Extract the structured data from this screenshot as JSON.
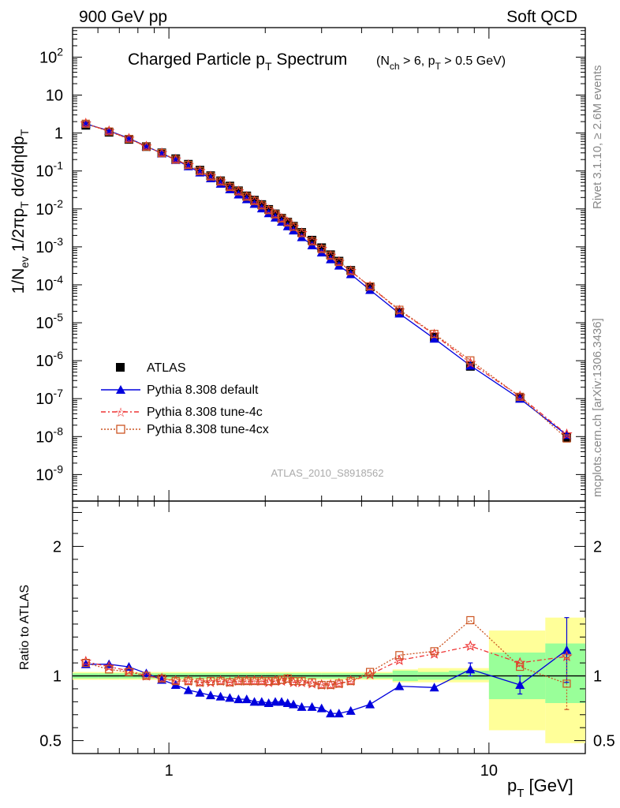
{
  "header": {
    "left": "900 GeV pp",
    "right": "Soft QCD"
  },
  "side": {
    "rivet": "Rivet 3.1.10, ≥ 2.6M events",
    "mcplots": "mcplots.cern.ch [arXiv:1306.3436]"
  },
  "plot_title": {
    "main_a": "Charged Particle p",
    "main_sub": "T",
    "main_b": " Spectrum",
    "cut_a": "(N",
    "cut_sub1": "ch",
    "cut_b": " > 6, p",
    "cut_sub2": "T",
    "cut_c": " > 0.5 GeV)"
  },
  "analysis_id": "ATLAS_2010_S8918562",
  "ylabel_top": "1/N_ev 1/2πp_T dσ/dηdp_T",
  "ylabel_ratio": "Ratio to ATLAS",
  "xlabel": "p_T  [GeV]",
  "legend": [
    {
      "label": "ATLAS",
      "color": "#000000",
      "marker": "square"
    },
    {
      "label": "Pythia 8.308 default",
      "color": "#0000dd",
      "marker": "triangle"
    },
    {
      "label": "Pythia 8.308 tune-4c",
      "color": "#ee3333",
      "marker": "star"
    },
    {
      "label": "Pythia 8.308 tune-4cx",
      "color": "#cc5522",
      "marker": "open-square"
    }
  ],
  "chart_data": {
    "type": "scatter",
    "x_scale": "log",
    "y_scale": "log",
    "xlim": [
      0.5,
      20
    ],
    "ylim": [
      2e-10,
      600
    ],
    "ratio_ylim": [
      0.4,
      2.35
    ],
    "x_ticks": [
      1,
      10
    ],
    "x": [
      0.55,
      0.65,
      0.75,
      0.85,
      0.95,
      1.05,
      1.15,
      1.25,
      1.35,
      1.45,
      1.55,
      1.65,
      1.75,
      1.85,
      1.95,
      2.05,
      2.15,
      2.25,
      2.35,
      2.45,
      2.6,
      2.8,
      3.0,
      3.2,
      3.4,
      3.7,
      4.25,
      5.25,
      6.75,
      8.75,
      12.5,
      17.5
    ],
    "series": [
      {
        "name": "ATLAS",
        "values": [
          1.6,
          1.05,
          0.68,
          0.44,
          0.3,
          0.21,
          0.15,
          0.105,
          0.075,
          0.055,
          0.04,
          0.03,
          0.022,
          0.017,
          0.013,
          0.0097,
          0.0074,
          0.0057,
          0.0045,
          0.0035,
          0.0024,
          0.0015,
          0.00095,
          0.00062,
          0.00042,
          0.00024,
          8.8e-05,
          1.9e-05,
          4.2e-06,
          7.1e-07,
          1.05e-07,
          9.5e-09
        ]
      },
      {
        "name": "Pythia 8.308 default",
        "values": [
          1.75,
          1.15,
          0.73,
          0.45,
          0.29,
          0.195,
          0.133,
          0.091,
          0.064,
          0.046,
          0.033,
          0.024,
          0.018,
          0.0136,
          0.0103,
          0.0077,
          0.0059,
          0.0046,
          0.0035,
          0.0027,
          0.0018,
          0.0011,
          0.00071,
          0.00047,
          0.00032,
          0.00019,
          7.3e-05,
          1.75e-05,
          3.8e-06,
          7.4e-07,
          9.9e-08,
          1.1e-08
        ]
      },
      {
        "name": "Pythia 8.308 tune-4c",
        "values": [
          1.78,
          1.12,
          0.71,
          0.44,
          0.295,
          0.2,
          0.143,
          0.1,
          0.072,
          0.053,
          0.038,
          0.029,
          0.021,
          0.0162,
          0.0124,
          0.0092,
          0.0071,
          0.0055,
          0.0044,
          0.0033,
          0.0023,
          0.0014,
          0.00088,
          0.00058,
          0.0004,
          0.00023,
          9e-05,
          2.1e-05,
          4.9e-06,
          8.7e-07,
          1.15e-07,
          1.15e-08
        ]
      },
      {
        "name": "Pythia 8.308 tune-4cx",
        "values": [
          1.76,
          1.1,
          0.7,
          0.44,
          0.295,
          0.2,
          0.144,
          0.1,
          0.072,
          0.053,
          0.038,
          0.029,
          0.021,
          0.0162,
          0.0124,
          0.0093,
          0.0072,
          0.0056,
          0.0044,
          0.0034,
          0.0023,
          0.0014,
          0.00088,
          0.00059,
          0.0004,
          0.00023,
          9.1e-05,
          2.2e-05,
          5.1e-06,
          1.02e-06,
          1.12e-07,
          8.9e-09
        ]
      }
    ],
    "ratios": [
      {
        "name": "Pythia 8.308 default",
        "values": [
          1.09,
          1.09,
          1.07,
          1.02,
          0.97,
          0.93,
          0.89,
          0.87,
          0.85,
          0.84,
          0.83,
          0.82,
          0.82,
          0.8,
          0.8,
          0.79,
          0.8,
          0.8,
          0.79,
          0.78,
          0.76,
          0.76,
          0.75,
          0.71,
          0.71,
          0.73,
          0.78,
          0.92,
          0.91,
          1.05,
          0.93,
          1.2
        ]
      },
      {
        "name": "Pythia 8.308 tune-4c",
        "values": [
          1.11,
          1.07,
          1.04,
          1.0,
          0.98,
          0.96,
          0.96,
          0.95,
          0.95,
          0.96,
          0.95,
          0.96,
          0.96,
          0.96,
          0.96,
          0.95,
          0.96,
          0.96,
          0.97,
          0.95,
          0.95,
          0.94,
          0.93,
          0.93,
          0.94,
          0.96,
          1.01,
          1.12,
          1.17,
          1.23,
          1.1,
          1.15
        ]
      },
      {
        "name": "Pythia 8.308 tune-4cx",
        "values": [
          1.1,
          1.05,
          1.03,
          1.0,
          0.98,
          0.96,
          0.96,
          0.95,
          0.96,
          0.96,
          0.95,
          0.96,
          0.96,
          0.96,
          0.96,
          0.96,
          0.96,
          0.97,
          0.98,
          0.96,
          0.96,
          0.95,
          0.93,
          0.93,
          0.94,
          0.96,
          1.03,
          1.16,
          1.19,
          1.43,
          1.07,
          0.94
        ]
      }
    ],
    "ratio_errors": [
      {
        "name": "Pythia 8.308 default",
        "x": [
          8.75,
          12.5,
          17.5
        ],
        "err": [
          0.05,
          0.07,
          0.25
        ]
      },
      {
        "name": "Pythia 8.308 tune-4cx",
        "x": [
          17.5
        ],
        "err": [
          0.2
        ]
      }
    ],
    "uncertainty_band": {
      "x_edges": [
        0.5,
        0.6,
        0.7,
        0.8,
        0.9,
        1.0,
        1.2,
        1.5,
        2.0,
        2.5,
        3.0,
        4.0,
        5.0,
        6.0,
        7.5,
        10.0,
        15.0,
        20.0
      ],
      "stat_lo": [
        0.98,
        0.98,
        0.98,
        0.98,
        0.98,
        0.98,
        0.98,
        0.98,
        0.98,
        0.98,
        0.98,
        0.98,
        0.96,
        0.97,
        0.97,
        0.82,
        0.79
      ],
      "stat_hi": [
        1.02,
        1.02,
        1.02,
        1.02,
        1.02,
        1.02,
        1.02,
        1.02,
        1.02,
        1.02,
        1.02,
        1.02,
        1.04,
        1.03,
        1.04,
        1.18,
        1.25
      ],
      "tot_lo": [
        0.97,
        0.97,
        0.97,
        0.97,
        0.97,
        0.97,
        0.97,
        0.97,
        0.97,
        0.97,
        0.97,
        0.97,
        0.95,
        0.95,
        0.95,
        0.58,
        0.48
      ],
      "tot_hi": [
        1.03,
        1.03,
        1.03,
        1.03,
        1.03,
        1.03,
        1.03,
        1.03,
        1.03,
        1.03,
        1.03,
        1.03,
        1.05,
        1.06,
        1.06,
        1.35,
        1.45
      ]
    },
    "colors": {
      "band_total": "#ffff99",
      "band_stat": "#99ff99",
      "data": "#000000",
      "default": "#0000dd",
      "tune4c": "#ee3333",
      "tune4cx": "#cc5522"
    }
  }
}
